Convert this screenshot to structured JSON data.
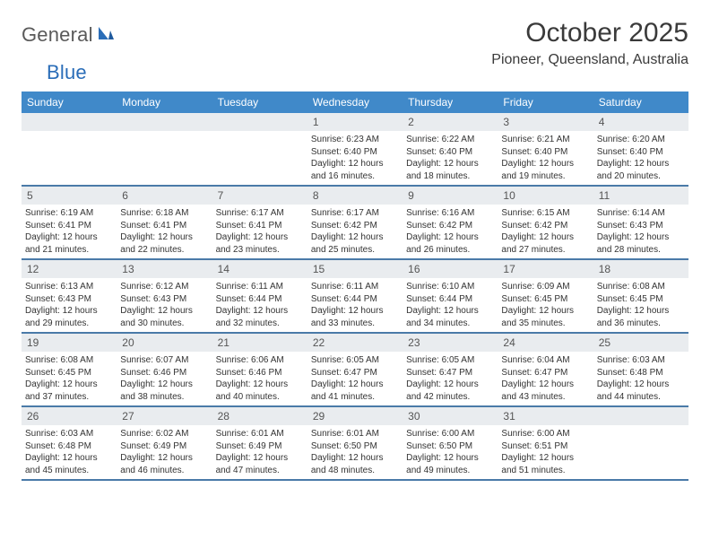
{
  "brand": {
    "part1": "General",
    "part2": "Blue"
  },
  "title": "October 2025",
  "location": "Pioneer, Queensland, Australia",
  "colors": {
    "header_bg": "#4089c9",
    "header_fg": "#ffffff",
    "daynum_bg": "#e9ecef",
    "row_border": "#4a7aa8",
    "text": "#333333",
    "brand_gray": "#5a5a5a",
    "brand_blue": "#2a6db8"
  },
  "dow": [
    "Sunday",
    "Monday",
    "Tuesday",
    "Wednesday",
    "Thursday",
    "Friday",
    "Saturday"
  ],
  "weeks": [
    [
      null,
      null,
      null,
      {
        "n": "1",
        "sr": "6:23 AM",
        "ss": "6:40 PM",
        "dl": "12 hours and 16 minutes."
      },
      {
        "n": "2",
        "sr": "6:22 AM",
        "ss": "6:40 PM",
        "dl": "12 hours and 18 minutes."
      },
      {
        "n": "3",
        "sr": "6:21 AM",
        "ss": "6:40 PM",
        "dl": "12 hours and 19 minutes."
      },
      {
        "n": "4",
        "sr": "6:20 AM",
        "ss": "6:40 PM",
        "dl": "12 hours and 20 minutes."
      }
    ],
    [
      {
        "n": "5",
        "sr": "6:19 AM",
        "ss": "6:41 PM",
        "dl": "12 hours and 21 minutes."
      },
      {
        "n": "6",
        "sr": "6:18 AM",
        "ss": "6:41 PM",
        "dl": "12 hours and 22 minutes."
      },
      {
        "n": "7",
        "sr": "6:17 AM",
        "ss": "6:41 PM",
        "dl": "12 hours and 23 minutes."
      },
      {
        "n": "8",
        "sr": "6:17 AM",
        "ss": "6:42 PM",
        "dl": "12 hours and 25 minutes."
      },
      {
        "n": "9",
        "sr": "6:16 AM",
        "ss": "6:42 PM",
        "dl": "12 hours and 26 minutes."
      },
      {
        "n": "10",
        "sr": "6:15 AM",
        "ss": "6:42 PM",
        "dl": "12 hours and 27 minutes."
      },
      {
        "n": "11",
        "sr": "6:14 AM",
        "ss": "6:43 PM",
        "dl": "12 hours and 28 minutes."
      }
    ],
    [
      {
        "n": "12",
        "sr": "6:13 AM",
        "ss": "6:43 PM",
        "dl": "12 hours and 29 minutes."
      },
      {
        "n": "13",
        "sr": "6:12 AM",
        "ss": "6:43 PM",
        "dl": "12 hours and 30 minutes."
      },
      {
        "n": "14",
        "sr": "6:11 AM",
        "ss": "6:44 PM",
        "dl": "12 hours and 32 minutes."
      },
      {
        "n": "15",
        "sr": "6:11 AM",
        "ss": "6:44 PM",
        "dl": "12 hours and 33 minutes."
      },
      {
        "n": "16",
        "sr": "6:10 AM",
        "ss": "6:44 PM",
        "dl": "12 hours and 34 minutes."
      },
      {
        "n": "17",
        "sr": "6:09 AM",
        "ss": "6:45 PM",
        "dl": "12 hours and 35 minutes."
      },
      {
        "n": "18",
        "sr": "6:08 AM",
        "ss": "6:45 PM",
        "dl": "12 hours and 36 minutes."
      }
    ],
    [
      {
        "n": "19",
        "sr": "6:08 AM",
        "ss": "6:45 PM",
        "dl": "12 hours and 37 minutes."
      },
      {
        "n": "20",
        "sr": "6:07 AM",
        "ss": "6:46 PM",
        "dl": "12 hours and 38 minutes."
      },
      {
        "n": "21",
        "sr": "6:06 AM",
        "ss": "6:46 PM",
        "dl": "12 hours and 40 minutes."
      },
      {
        "n": "22",
        "sr": "6:05 AM",
        "ss": "6:47 PM",
        "dl": "12 hours and 41 minutes."
      },
      {
        "n": "23",
        "sr": "6:05 AM",
        "ss": "6:47 PM",
        "dl": "12 hours and 42 minutes."
      },
      {
        "n": "24",
        "sr": "6:04 AM",
        "ss": "6:47 PM",
        "dl": "12 hours and 43 minutes."
      },
      {
        "n": "25",
        "sr": "6:03 AM",
        "ss": "6:48 PM",
        "dl": "12 hours and 44 minutes."
      }
    ],
    [
      {
        "n": "26",
        "sr": "6:03 AM",
        "ss": "6:48 PM",
        "dl": "12 hours and 45 minutes."
      },
      {
        "n": "27",
        "sr": "6:02 AM",
        "ss": "6:49 PM",
        "dl": "12 hours and 46 minutes."
      },
      {
        "n": "28",
        "sr": "6:01 AM",
        "ss": "6:49 PM",
        "dl": "12 hours and 47 minutes."
      },
      {
        "n": "29",
        "sr": "6:01 AM",
        "ss": "6:50 PM",
        "dl": "12 hours and 48 minutes."
      },
      {
        "n": "30",
        "sr": "6:00 AM",
        "ss": "6:50 PM",
        "dl": "12 hours and 49 minutes."
      },
      {
        "n": "31",
        "sr": "6:00 AM",
        "ss": "6:51 PM",
        "dl": "12 hours and 51 minutes."
      },
      null
    ]
  ],
  "labels": {
    "sunrise": "Sunrise:",
    "sunset": "Sunset:",
    "daylight": "Daylight:"
  }
}
